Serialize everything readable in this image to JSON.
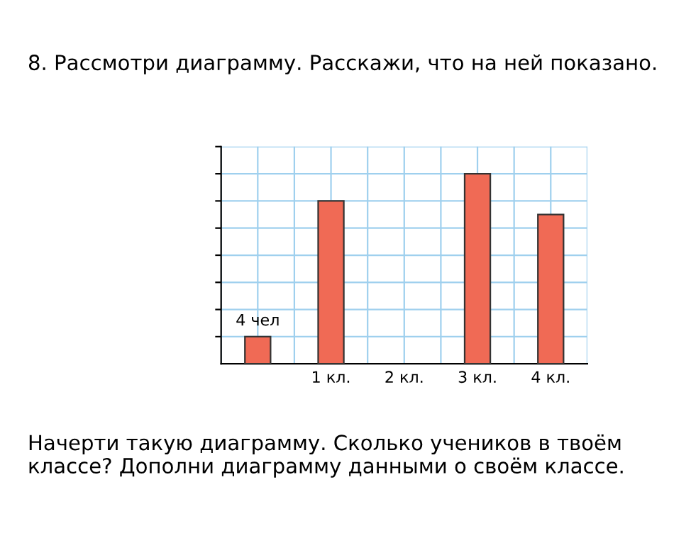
{
  "chart_data": {
    "type": "bar",
    "title": "8. Рассмотри диаграмму. Расскажи, что на ней показано.",
    "categories": [
      null,
      "1 кл.",
      "2 кл.",
      "3 кл.",
      "4 кл."
    ],
    "values": [
      4,
      24,
      null,
      28,
      22
    ],
    "value_labels": [
      "4 чел",
      null,
      null,
      null,
      null
    ],
    "color": "#f06a55",
    "grid": true,
    "ylim": [
      0,
      32
    ],
    "yticks": [
      {
        "value": 4,
        "label": null
      },
      {
        "value": 8,
        "label": null
      },
      {
        "value": 12,
        "label": null
      },
      {
        "value": 16,
        "label": null
      },
      {
        "value": 20,
        "label": null
      },
      {
        "value": 24,
        "label": null
      },
      {
        "value": 28,
        "label": null
      },
      {
        "value": 32,
        "label": null
      }
    ],
    "annotations": [
      "Начерти такую диаграмму. Сколько учеников в твоём классе? Дополни диаграмму данными о своём классе."
    ]
  }
}
